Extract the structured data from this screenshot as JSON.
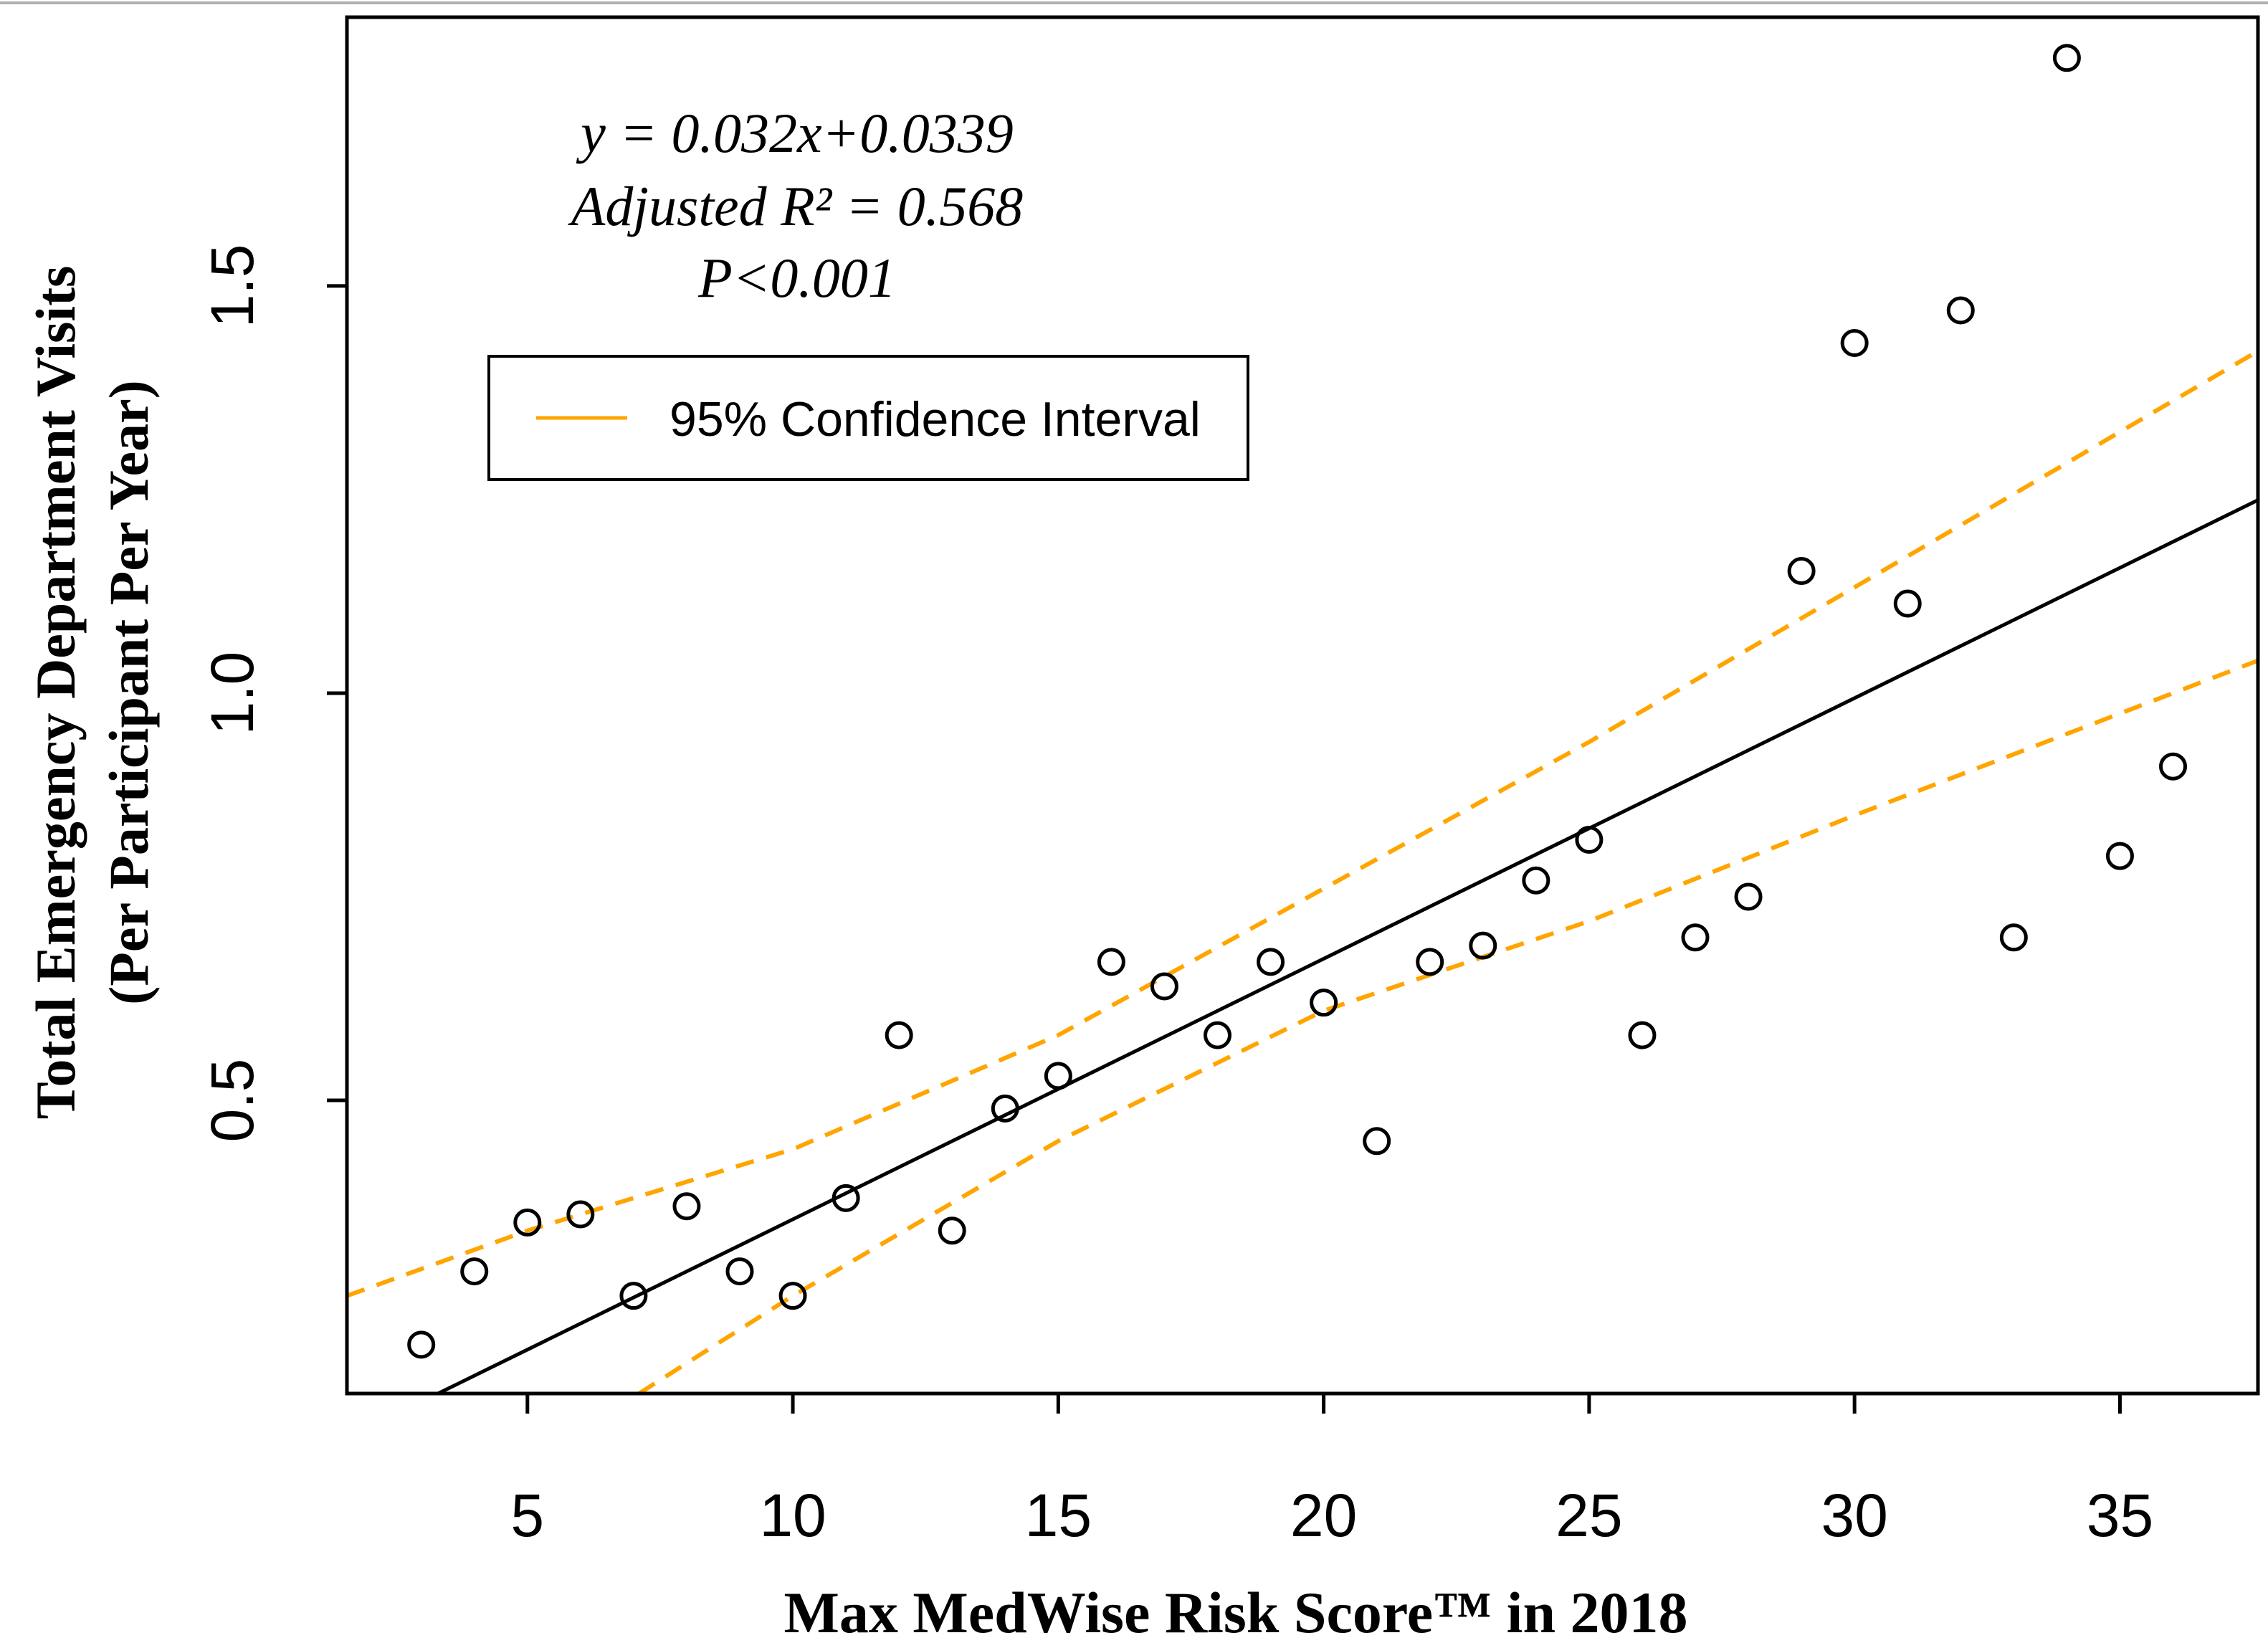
{
  "chart_data": {
    "type": "scatter",
    "title": "",
    "xlabel": "Max MedWise Risk Score™ in 2018",
    "ylabel_lines": [
      "Total Emergency Department Visits",
      "(Per Participant Per Year)"
    ],
    "xlim": [
      1.6,
      37.6
    ],
    "ylim": [
      0.14,
      1.83
    ],
    "x_ticks": [
      5,
      10,
      15,
      20,
      25,
      30,
      35
    ],
    "x_tick_labels": [
      "5",
      "10",
      "15",
      "20",
      "25",
      "30",
      "35"
    ],
    "y_ticks": [
      0.5,
      1.0,
      1.5
    ],
    "y_tick_labels": [
      "0.5",
      "1.0",
      "1.5"
    ],
    "points": [
      {
        "x": 3,
        "y": 0.2
      },
      {
        "x": 4,
        "y": 0.29
      },
      {
        "x": 5,
        "y": 0.35
      },
      {
        "x": 6,
        "y": 0.36
      },
      {
        "x": 7,
        "y": 0.26
      },
      {
        "x": 8,
        "y": 0.37
      },
      {
        "x": 9,
        "y": 0.29
      },
      {
        "x": 10,
        "y": 0.26
      },
      {
        "x": 11,
        "y": 0.38
      },
      {
        "x": 12,
        "y": 0.58
      },
      {
        "x": 13,
        "y": 0.34
      },
      {
        "x": 14,
        "y": 0.49
      },
      {
        "x": 15,
        "y": 0.53
      },
      {
        "x": 16,
        "y": 0.67
      },
      {
        "x": 17,
        "y": 0.64
      },
      {
        "x": 18,
        "y": 0.58
      },
      {
        "x": 19,
        "y": 0.67
      },
      {
        "x": 20,
        "y": 0.62
      },
      {
        "x": 21,
        "y": 0.45
      },
      {
        "x": 22,
        "y": 0.67
      },
      {
        "x": 23,
        "y": 0.69
      },
      {
        "x": 24,
        "y": 0.77
      },
      {
        "x": 25,
        "y": 0.82
      },
      {
        "x": 26,
        "y": 0.58
      },
      {
        "x": 27,
        "y": 0.7
      },
      {
        "x": 28,
        "y": 0.75
      },
      {
        "x": 29,
        "y": 1.15
      },
      {
        "x": 30,
        "y": 1.43
      },
      {
        "x": 31,
        "y": 1.11
      },
      {
        "x": 32,
        "y": 1.47
      },
      {
        "x": 33,
        "y": 0.7
      },
      {
        "x": 34,
        "y": 1.78
      },
      {
        "x": 35,
        "y": 0.8
      },
      {
        "x": 36,
        "y": 0.91
      }
    ],
    "fit_line": {
      "slope": 0.032,
      "intercept": 0.0339
    },
    "ci_upper": [
      {
        "x": 1.6,
        "y": 0.26
      },
      {
        "x": 5,
        "y": 0.34
      },
      {
        "x": 10,
        "y": 0.44
      },
      {
        "x": 15,
        "y": 0.58
      },
      {
        "x": 20,
        "y": 0.76
      },
      {
        "x": 25,
        "y": 0.94
      },
      {
        "x": 30,
        "y": 1.13
      },
      {
        "x": 37.6,
        "y": 1.42
      }
    ],
    "ci_lower": [
      {
        "x": 7.1,
        "y": 0.14
      },
      {
        "x": 10,
        "y": 0.26
      },
      {
        "x": 15,
        "y": 0.45
      },
      {
        "x": 20,
        "y": 0.61
      },
      {
        "x": 25,
        "y": 0.72
      },
      {
        "x": 30,
        "y": 0.85
      },
      {
        "x": 37.6,
        "y": 1.04
      }
    ],
    "annotation_lines": [
      "y = 0.032x+0.0339",
      "Adjusted R² = 0.568",
      "P<0.001"
    ],
    "legend": {
      "label": "95% Confidence Interval",
      "position": "top-left"
    },
    "colors": {
      "points": "#000000",
      "fit": "#000000",
      "ci": "#FFA500",
      "frame": "#000000"
    }
  }
}
